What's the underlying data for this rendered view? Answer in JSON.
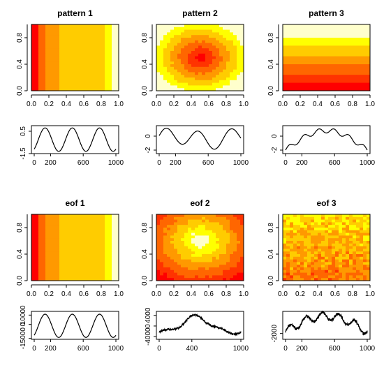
{
  "palette": [
    "#ff0000",
    "#ff3300",
    "#ff6600",
    "#ff9900",
    "#ffcc00",
    "#ffff00",
    "#ffffcc"
  ],
  "chart_data": [
    {
      "id": "pattern1",
      "type": "heatmap",
      "title": "pattern 1",
      "xlim": [
        0,
        1
      ],
      "ylim": [
        0,
        1
      ],
      "x_ticks": [
        "0.0",
        "0.2",
        "0.4",
        "0.6",
        "0.8",
        "1.0"
      ],
      "y_ticks": [
        "0.0",
        "0.4",
        "0.8"
      ],
      "field": "stripes-left-red"
    },
    {
      "id": "pattern2",
      "type": "heatmap",
      "title": "pattern 2",
      "xlim": [
        0,
        1
      ],
      "ylim": [
        0,
        1
      ],
      "x_ticks": [
        "0.0",
        "0.2",
        "0.4",
        "0.6",
        "0.8",
        "1.0"
      ],
      "y_ticks": [
        "0.0",
        "0.4",
        "0.8"
      ],
      "field": "radial-center-red"
    },
    {
      "id": "pattern3",
      "type": "heatmap",
      "title": "pattern 3",
      "xlim": [
        0,
        1
      ],
      "ylim": [
        0,
        1
      ],
      "x_ticks": [
        "0.0",
        "0.2",
        "0.4",
        "0.6",
        "0.8",
        "1.0"
      ],
      "y_ticks": [
        "0.0",
        "0.4",
        "0.8"
      ],
      "field": "vertical-gradient"
    },
    {
      "id": "ts1",
      "type": "line",
      "xlim": [
        0,
        1000
      ],
      "ylim": [
        -1.5,
        1.0
      ],
      "x_ticks": [
        "0",
        "200",
        "600",
        "1000"
      ],
      "y_ticks": [
        "-1.5",
        "0.5"
      ],
      "signal": "sin3"
    },
    {
      "id": "ts2",
      "type": "line",
      "xlim": [
        0,
        1000
      ],
      "ylim": [
        -2.5,
        1.5
      ],
      "x_ticks": [
        "0",
        "200",
        "600",
        "1000"
      ],
      "y_ticks": [
        "-2",
        "0"
      ],
      "signal": "wave2"
    },
    {
      "id": "ts3",
      "type": "line",
      "xlim": [
        0,
        1000
      ],
      "ylim": [
        -2.5,
        1.5
      ],
      "x_ticks": [
        "0",
        "200",
        "600",
        "1000"
      ],
      "y_ticks": [
        "-2",
        "0"
      ],
      "signal": "wave3"
    },
    {
      "id": "eof1",
      "type": "heatmap",
      "title": "eof 1",
      "xlim": [
        0,
        1
      ],
      "ylim": [
        0,
        1
      ],
      "x_ticks": [
        "0.0",
        "0.2",
        "0.4",
        "0.6",
        "0.8",
        "1.0"
      ],
      "y_ticks": [
        "0.0",
        "0.4",
        "0.8"
      ],
      "field": "stripes-left-red"
    },
    {
      "id": "eof2",
      "type": "heatmap",
      "title": "eof 2",
      "xlim": [
        0,
        1
      ],
      "ylim": [
        0,
        1
      ],
      "x_ticks": [
        "0.0",
        "0.2",
        "0.4",
        "0.6",
        "0.8",
        "1.0"
      ],
      "y_ticks": [
        "0.0",
        "0.4",
        "0.8"
      ],
      "field": "radial-center-light"
    },
    {
      "id": "eof3",
      "type": "heatmap",
      "title": "eof 3",
      "xlim": [
        0,
        1
      ],
      "ylim": [
        0,
        1
      ],
      "x_ticks": [
        "0.0",
        "0.2",
        "0.4",
        "0.6",
        "0.8",
        "1.0"
      ],
      "y_ticks": [
        "0.0",
        "0.4",
        "0.8"
      ],
      "field": "noisy-mixed"
    },
    {
      "id": "ts4",
      "type": "line",
      "xlim": [
        0,
        1000
      ],
      "ylim": [
        -16000,
        14000
      ],
      "x_ticks": [
        "0",
        "200",
        "600",
        "1000"
      ],
      "y_ticks": [
        "-15000",
        "0",
        "10000"
      ],
      "signal": "sin3-big"
    },
    {
      "id": "ts5",
      "type": "line",
      "xlim": [
        0,
        1000
      ],
      "ylim": [
        -5000,
        5500
      ],
      "x_ticks": [
        "0",
        "400",
        "1000"
      ],
      "y_ticks": [
        "-4000",
        "0",
        "4000"
      ],
      "signal": "bump-noisy"
    },
    {
      "id": "ts6",
      "type": "line",
      "xlim": [
        0,
        1000
      ],
      "ylim": [
        -3000,
        1800
      ],
      "x_ticks": [
        "0",
        "200",
        "600",
        "1000"
      ],
      "y_ticks": [
        "-2000"
      ],
      "signal": "wave3-noisy"
    }
  ]
}
